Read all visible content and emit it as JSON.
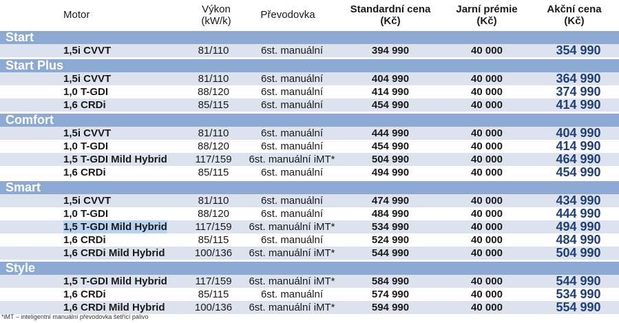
{
  "header": {
    "motor": "Motor",
    "vykon_line1": "Výkon",
    "vykon_line2": "(kW/k)",
    "prevodovka": "Převodovka",
    "standardni_line1": "Standardní cena",
    "standardni_line2": "(Kč)",
    "jarni_line1": "Jarní prémie",
    "jarni_line2": "(Kč)",
    "akcni_line1": "Akční cena",
    "akcni_line2": "(Kč)"
  },
  "sections": [
    {
      "name": "Start",
      "rows": [
        {
          "motor": "1,5i CVVT",
          "vykon": "81/110",
          "prevodovka": "6st. manuální",
          "standardni": "394 990",
          "jarni": "40 000",
          "akcni": "354 990"
        }
      ]
    },
    {
      "name": "Start Plus",
      "rows": [
        {
          "motor": "1,5i CVVT",
          "vykon": "81/110",
          "prevodovka": "6st. manuální",
          "standardni": "404 990",
          "jarni": "40 000",
          "akcni": "364 990"
        },
        {
          "motor": "1,0 T-GDI",
          "vykon": "88/120",
          "prevodovka": "6st. manuální",
          "standardni": "414 990",
          "jarni": "40 000",
          "akcni": "374 990"
        },
        {
          "motor": "1,6 CRDi",
          "vykon": "85/115",
          "prevodovka": "6st. manuální",
          "standardni": "454 990",
          "jarni": "40 000",
          "akcni": "414 990"
        }
      ]
    },
    {
      "name": "Comfort",
      "rows": [
        {
          "motor": "1,5i CVVT",
          "vykon": "81/110",
          "prevodovka": "6st. manuální",
          "standardni": "444 990",
          "jarni": "40 000",
          "akcni": "404 990"
        },
        {
          "motor": "1,0 T-GDI",
          "vykon": "88/120",
          "prevodovka": "6st. manuální",
          "standardni": "454 990",
          "jarni": "40 000",
          "akcni": "414 990"
        },
        {
          "motor": "1,5 T-GDI Mild Hybrid",
          "vykon": "117/159",
          "prevodovka": "6st. manuální iMT*",
          "standardni": "504 990",
          "jarni": "40 000",
          "akcni": "464 990"
        },
        {
          "motor": "1,6 CRDi",
          "vykon": "85/115",
          "prevodovka": "6st. manuální",
          "standardni": "494 990",
          "jarni": "40 000",
          "akcni": "454 990"
        }
      ]
    },
    {
      "name": "Smart",
      "rows": [
        {
          "motor": "1,5i CVVT",
          "vykon": "81/110",
          "prevodovka": "6st. manuální",
          "standardni": "474 990",
          "jarni": "40 000",
          "akcni": "434 990"
        },
        {
          "motor": "1,0 T-GDI",
          "vykon": "88/120",
          "prevodovka": "6st. manuální",
          "standardni": "484 990",
          "jarni": "40 000",
          "akcni": "444 990"
        },
        {
          "motor": "1,5 T-GDI Mild Hybrid",
          "vykon": "117/159",
          "prevodovka": "6st. manuální iMT*",
          "standardni": "534 990",
          "jarni": "40 000",
          "akcni": "494 990"
        },
        {
          "motor": "1,6 CRDi",
          "vykon": "85/115",
          "prevodovka": "6st. manuální",
          "standardni": "524 990",
          "jarni": "40 000",
          "akcni": "484 990"
        },
        {
          "motor": "1,6 CRDi Mild Hybrid",
          "vykon": "100/136",
          "prevodovka": "6st. manuální iMT*",
          "standardni": "544 990",
          "jarni": "40 000",
          "akcni": "504 990"
        }
      ]
    },
    {
      "name": "Style",
      "rows": [
        {
          "motor": "1,5 T-GDI Mild Hybrid",
          "vykon": "117/159",
          "prevodovka": "6st. manuální iMT*",
          "standardni": "584 990",
          "jarni": "40 000",
          "akcni": "544 990"
        },
        {
          "motor": "1,6 CRDi",
          "vykon": "85/115",
          "prevodovka": "6st. manuální",
          "standardni": "574 990",
          "jarni": "40 000",
          "akcni": "534 990"
        },
        {
          "motor": "1,6 CRDi Mild Hybrid",
          "vykon": "100/136",
          "prevodovka": "6st. manuální iMT*",
          "standardni": "594 990",
          "jarni": "40 000",
          "akcni": "554 990"
        }
      ]
    }
  ],
  "highlighted": {
    "section": "Smart",
    "motor": "1,5 T-GDI Mild Hybrid"
  },
  "colors": {
    "section_band": "#8ca9d3",
    "row_shade": "#dde3ee",
    "akcni_text": "#1d3f7a",
    "highlight": "#b7d3ef"
  },
  "footnote": "*iMT – inteligentní manuální převodovka šetřící palivo"
}
